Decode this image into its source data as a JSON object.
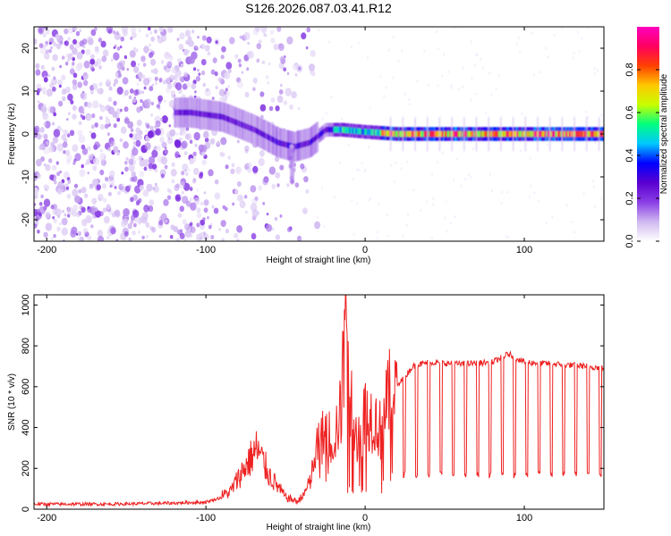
{
  "title": "S126.2026.087.03.41.R12",
  "chart_data": [
    {
      "type": "heatmap",
      "xlabel": "Height of straight line (km)",
      "ylabel": "Frequency (Hz)",
      "xlim": [
        -208,
        150
      ],
      "ylim": [
        -25,
        25
      ],
      "xticks": [
        -200,
        -100,
        0,
        100
      ],
      "xtick_labels": [
        "-200",
        "-100",
        "0",
        "100"
      ],
      "yticks": [
        20,
        10,
        0,
        -10,
        -20
      ],
      "ytick_labels": [
        "20",
        "10",
        "0",
        "-10",
        "-20"
      ],
      "colorbar": {
        "label": "Normalized spectral amplitude",
        "range": [
          0,
          1
        ],
        "ticks": [
          0.0,
          0.2,
          0.4,
          0.6,
          0.8
        ],
        "tick_labels": [
          "0.0",
          "0.2",
          "0.4",
          "0.6",
          "0.8"
        ],
        "colormap": [
          "#ffffff",
          "#d0b8f0",
          "#8a3ee6",
          "#5a00d0",
          "#0000ff",
          "#00c8ff",
          "#00ff80",
          "#c8ff00",
          "#ffc800",
          "#ff4000",
          "#ff0060",
          "#ff00c0"
        ]
      },
      "ridge": [
        {
          "x": -110,
          "y": 5
        },
        {
          "x": -90,
          "y": 4
        },
        {
          "x": -70,
          "y": 1
        },
        {
          "x": -55,
          "y": -2
        },
        {
          "x": -45,
          "y": -3
        },
        {
          "x": -35,
          "y": -2
        },
        {
          "x": -25,
          "y": 1
        },
        {
          "x": -15,
          "y": 1
        },
        {
          "x": 0,
          "y": 0.5
        },
        {
          "x": 20,
          "y": 0
        },
        {
          "x": 80,
          "y": 0
        },
        {
          "x": 150,
          "y": 0
        }
      ]
    },
    {
      "type": "line",
      "xlabel": "Height of straight line (km)",
      "ylabel": "SNR (10 * v/v)",
      "xlim": [
        -208,
        150
      ],
      "ylim": [
        0,
        1050
      ],
      "xticks": [
        -200,
        -100,
        0,
        100
      ],
      "xtick_labels": [
        "-200",
        "-100",
        "0",
        "100"
      ],
      "yticks": [
        0,
        200,
        400,
        600,
        800,
        1000
      ],
      "ytick_labels": [
        "0",
        "200",
        "400",
        "600",
        "800",
        "1000"
      ],
      "color": "#ee2222",
      "x": [
        -208,
        -160,
        -120,
        -100,
        -85,
        -75,
        -68,
        -60,
        -50,
        -42,
        -35,
        -30,
        -25,
        -20,
        -15,
        -12,
        -10,
        -8,
        -5,
        0,
        5,
        10,
        15,
        20,
        25,
        30,
        40,
        60,
        80,
        90,
        100,
        120,
        140,
        150
      ],
      "y": [
        25,
        25,
        30,
        35,
        70,
        180,
        250,
        140,
        50,
        30,
        120,
        300,
        380,
        340,
        480,
        1050,
        400,
        560,
        350,
        470,
        450,
        380,
        560,
        600,
        650,
        700,
        720,
        710,
        720,
        760,
        720,
        710,
        700,
        690
      ],
      "dips": {
        "start": 24,
        "spacing": 7.7,
        "low": 170
      }
    }
  ]
}
